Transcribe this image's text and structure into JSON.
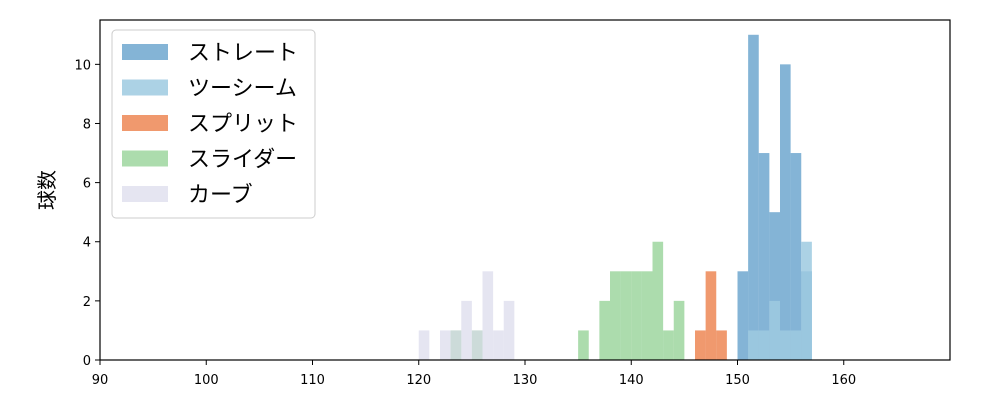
{
  "chart_data": {
    "type": "histogram",
    "title": "",
    "xlabel": "",
    "ylabel": "球数",
    "xlim": [
      90,
      170
    ],
    "ylim": [
      0,
      11.5
    ],
    "bin_width": 1,
    "xticks": [
      90,
      100,
      110,
      120,
      130,
      140,
      150,
      160
    ],
    "yticks": [
      0,
      2,
      4,
      6,
      8,
      10
    ],
    "grid": false,
    "legend_position": "top-left",
    "series": [
      {
        "name": "ストレート",
        "color": "#1f77b4",
        "alpha": 0.55,
        "bins": [
          [
            150,
            3
          ],
          [
            151,
            11
          ],
          [
            152,
            7
          ],
          [
            153,
            5
          ],
          [
            154,
            10
          ],
          [
            155,
            7
          ],
          [
            156,
            3
          ]
        ]
      },
      {
        "name": "ツーシーム",
        "color": "#9ecae1",
        "alpha": 0.85,
        "bins": [
          [
            151,
            1
          ],
          [
            152,
            1
          ],
          [
            153,
            2
          ],
          [
            154,
            1
          ],
          [
            155,
            1
          ],
          [
            156,
            4
          ]
        ]
      },
      {
        "name": "スプリット",
        "color": "#e6550d",
        "alpha": 0.6,
        "bins": [
          [
            146,
            1
          ],
          [
            147,
            3
          ],
          [
            148,
            1
          ]
        ]
      },
      {
        "name": "スライダー",
        "color": "#74c476",
        "alpha": 0.6,
        "bins": [
          [
            123,
            1
          ],
          [
            125,
            1
          ],
          [
            135,
            1
          ],
          [
            137,
            2
          ],
          [
            138,
            3
          ],
          [
            139,
            3
          ],
          [
            140,
            3
          ],
          [
            141,
            3
          ],
          [
            142,
            4
          ],
          [
            143,
            1
          ],
          [
            144,
            2
          ]
        ]
      },
      {
        "name": "カーブ",
        "color": "#dadaeb",
        "alpha": 0.7,
        "bins": [
          [
            120,
            1
          ],
          [
            122,
            1
          ],
          [
            123,
            1
          ],
          [
            124,
            2
          ],
          [
            125,
            1
          ],
          [
            126,
            3
          ],
          [
            127,
            1
          ],
          [
            128,
            2
          ]
        ]
      }
    ]
  }
}
